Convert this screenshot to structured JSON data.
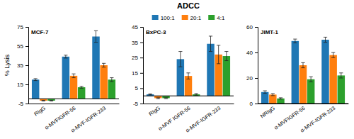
{
  "chart_data": [
    {
      "type": "bar",
      "annotations": [
        "MCF-7"
      ],
      "ylabel": "% Lysis",
      "ylim": [
        -5,
        75
      ],
      "yticks": [
        -5,
        15,
        35,
        55,
        75
      ],
      "categories": [
        "RIgG",
        "α-MVFIGFR-56",
        "α-MVF-IGFR-233"
      ],
      "series": [
        {
          "name": "100:1",
          "values": [
            20,
            44,
            65
          ],
          "errors": [
            1.0,
            1.5,
            6
          ]
        },
        {
          "name": "20:1",
          "values": [
            -2,
            24,
            35
          ],
          "errors": [
            0.3,
            2.0,
            2
          ]
        },
        {
          "name": "4:1",
          "values": [
            -2,
            12,
            20
          ],
          "errors": [
            0.3,
            1.0,
            2
          ]
        }
      ]
    },
    {
      "type": "bar",
      "title": "ADCC",
      "legend": "top",
      "annotations": [
        "BxPC-3"
      ],
      "ylim": [
        -5,
        45
      ],
      "yticks": [
        -5,
        5,
        15,
        25,
        35,
        45
      ],
      "categories": [
        "RIgG",
        "α-MVF IGFR-56",
        "α-MVF-IGFR-233"
      ],
      "series": [
        {
          "name": "100:1",
          "values": [
            1,
            24,
            34
          ],
          "errors": [
            0.3,
            5,
            5
          ]
        },
        {
          "name": "20:1",
          "values": [
            -1.5,
            13,
            27
          ],
          "errors": [
            0.3,
            2,
            6
          ]
        },
        {
          "name": "4:1",
          "values": [
            -1.5,
            1,
            26
          ],
          "errors": [
            0.3,
            0.5,
            3
          ]
        }
      ]
    },
    {
      "type": "bar",
      "annotations": [
        "JIMT-1"
      ],
      "ylim": [
        0,
        60
      ],
      "yticks": [
        0,
        20,
        40,
        60
      ],
      "categories": [
        "NRIgG",
        "α-MVFIGFR-56",
        "α-MVF-IGFR-233"
      ],
      "series": [
        {
          "name": "100:1",
          "values": [
            9,
            49,
            50
          ],
          "errors": [
            1,
            1.5,
            2
          ]
        },
        {
          "name": "20:1",
          "values": [
            7,
            30,
            38
          ],
          "errors": [
            0.8,
            2,
            2
          ]
        },
        {
          "name": "4:1",
          "values": [
            4,
            19,
            22
          ],
          "errors": [
            0.5,
            2,
            2
          ]
        }
      ]
    }
  ]
}
